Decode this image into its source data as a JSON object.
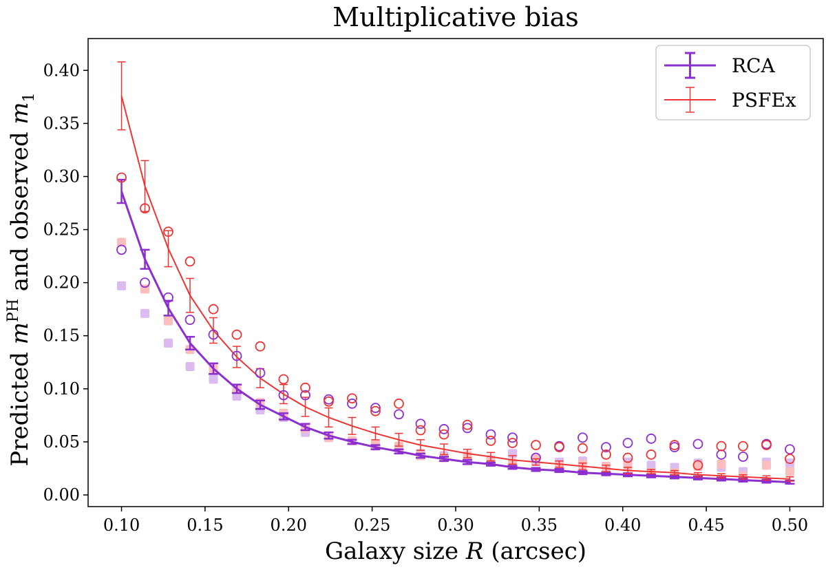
{
  "chart_data": {
    "type": "line",
    "title": "Multiplicative bias",
    "xlabel": {
      "text": "Galaxy size ",
      "var": "R",
      "suffix": " (arcsec)"
    },
    "ylabel": {
      "prefix": "Predicted ",
      "var": "m",
      "sup": "PH",
      "middle": " and observed ",
      "var2": "m",
      "sub2": "1"
    },
    "xlim": [
      0.08,
      0.52
    ],
    "ylim": [
      -0.011,
      0.43
    ],
    "x_ticks": [
      "0.10",
      "0.15",
      "0.20",
      "0.25",
      "0.30",
      "0.35",
      "0.40",
      "0.45",
      "0.50"
    ],
    "y_ticks": [
      "0.00",
      "0.05",
      "0.10",
      "0.15",
      "0.20",
      "0.25",
      "0.30",
      "0.35",
      "0.40"
    ],
    "grid": false,
    "legend_position": "top-right",
    "x": [
      0.1,
      0.114,
      0.128,
      0.141,
      0.155,
      0.169,
      0.183,
      0.197,
      0.21,
      0.224,
      0.238,
      0.252,
      0.266,
      0.279,
      0.293,
      0.307,
      0.321,
      0.334,
      0.348,
      0.362,
      0.376,
      0.39,
      0.403,
      0.417,
      0.431,
      0.445,
      0.459,
      0.472,
      0.486,
      0.5
    ],
    "series": [
      {
        "name": "RCA",
        "color": "#8b2fd0",
        "line_width": 3,
        "predicted": [
          0.286,
          0.222,
          0.176,
          0.143,
          0.119,
          0.1,
          0.085,
          0.074,
          0.064,
          0.056,
          0.05,
          0.045,
          0.041,
          0.037,
          0.034,
          0.031,
          0.029,
          0.026,
          0.024,
          0.023,
          0.021,
          0.02,
          0.019,
          0.018,
          0.017,
          0.016,
          0.015,
          0.014,
          0.013,
          0.012
        ],
        "error": [
          0.011,
          0.009,
          0.007,
          0.006,
          0.005,
          0.004,
          0.004,
          0.003,
          0.003,
          0.003,
          0.002,
          0.002,
          0.002,
          0.002,
          0.002,
          0.002,
          0.0015,
          0.0015,
          0.0015,
          0.0015,
          0.0015,
          0.0015,
          0.0015,
          0.0015,
          0.0015,
          0.0015,
          0.0015,
          0.0015,
          0.0015,
          0.0015
        ],
        "observed_open": [
          0.231,
          0.2,
          0.186,
          0.165,
          0.151,
          0.131,
          0.115,
          0.094,
          0.094,
          0.09,
          0.086,
          0.082,
          0.076,
          0.067,
          0.062,
          0.063,
          0.057,
          0.054,
          0.035,
          0.046,
          0.054,
          0.045,
          0.049,
          0.053,
          0.045,
          0.048,
          0.038,
          0.036,
          0.048,
          0.043
        ],
        "observed_filled": [
          0.197,
          0.171,
          0.143,
          0.121,
          0.109,
          0.093,
          0.08,
          0.073,
          0.059,
          0.054,
          0.051,
          0.046,
          0.044,
          0.039,
          0.037,
          0.035,
          0.033,
          0.039,
          0.032,
          0.031,
          0.032,
          0.026,
          0.031,
          0.028,
          0.026,
          0.03,
          0.026,
          0.022,
          0.031,
          0.03
        ]
      },
      {
        "name": "PSFEx",
        "color": "#ee3333",
        "line_width": 2,
        "predicted": [
          0.376,
          0.291,
          0.232,
          0.188,
          0.155,
          0.13,
          0.11,
          0.095,
          0.083,
          0.073,
          0.065,
          0.058,
          0.052,
          0.047,
          0.043,
          0.039,
          0.036,
          0.033,
          0.031,
          0.029,
          0.027,
          0.025,
          0.023,
          0.022,
          0.021,
          0.019,
          0.018,
          0.017,
          0.016,
          0.015
        ],
        "error": [
          0.032,
          0.024,
          0.017,
          0.016,
          0.012,
          0.01,
          0.009,
          0.009,
          0.009,
          0.009,
          0.008,
          0.006,
          0.006,
          0.005,
          0.005,
          0.004,
          0.004,
          0.004,
          0.003,
          0.003,
          0.003,
          0.003,
          0.003,
          0.002,
          0.002,
          0.002,
          0.002,
          0.002,
          0.002,
          0.002
        ],
        "observed_open": [
          0.299,
          0.27,
          0.248,
          0.22,
          0.175,
          0.151,
          0.14,
          0.109,
          0.101,
          0.088,
          0.091,
          0.079,
          0.086,
          0.061,
          0.057,
          0.066,
          0.051,
          0.049,
          0.047,
          0.045,
          0.044,
          0.038,
          0.035,
          0.038,
          0.047,
          0.028,
          0.046,
          0.046,
          0.047,
          0.034
        ],
        "observed_filled": [
          0.238,
          0.194,
          0.164,
          0.137,
          0.119,
          0.1,
          0.087,
          0.077,
          0.063,
          0.054,
          0.051,
          0.048,
          0.046,
          0.037,
          0.035,
          0.037,
          0.031,
          0.03,
          0.034,
          0.027,
          0.029,
          0.027,
          0.027,
          0.021,
          0.021,
          0.027,
          0.029,
          0.018,
          0.028,
          0.022
        ]
      }
    ]
  }
}
